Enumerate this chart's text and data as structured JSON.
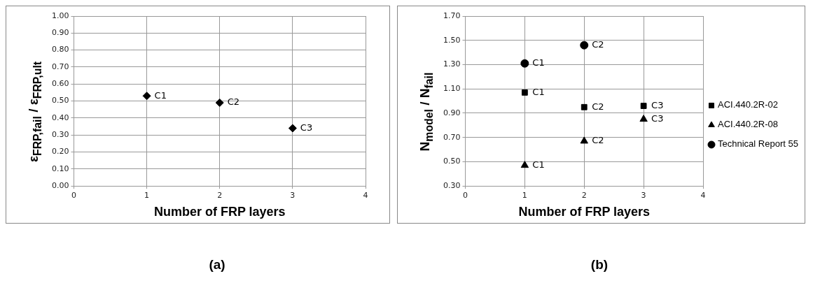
{
  "chart_data": [
    {
      "type": "scatter",
      "title": "(a)",
      "xlabel": "Number of FRP layers",
      "ylabel": "ε$_{FRP,fail}$ / ε$_{FRP,ult}$",
      "xlim": [
        0,
        4
      ],
      "xticks": [
        0,
        1,
        2,
        3,
        4
      ],
      "ylim": [
        0,
        1
      ],
      "yticks": [
        {
          "value": 0,
          "label": "0.00"
        },
        {
          "value": 0.1,
          "label": "0.10"
        },
        {
          "value": 0.2,
          "label": "0.20"
        },
        {
          "value": 0.3,
          "label": "0.30"
        },
        {
          "value": 0.4,
          "label": "0.40"
        },
        {
          "value": 0.5,
          "label": "0.50"
        },
        {
          "value": 0.6,
          "label": "0.60"
        },
        {
          "value": 0.7,
          "label": "0.70"
        },
        {
          "value": 0.8,
          "label": "0.80"
        },
        {
          "value": 0.9,
          "label": "0.90"
        },
        {
          "value": 1,
          "label": "1.00"
        }
      ],
      "grid": true,
      "legend": false,
      "marker": "diamond",
      "series": [
        {
          "color": "#000000",
          "x": [
            1,
            2,
            3
          ],
          "values": [
            0.53,
            0.49,
            0.34
          ]
        }
      ],
      "annotations": [
        {
          "text": "C1",
          "x": 1,
          "y": 0.53
        },
        {
          "text": "C2",
          "x": 2,
          "y": 0.49
        },
        {
          "text": "C3",
          "x": 3,
          "y": 0.34
        }
      ]
    },
    {
      "type": "scatter",
      "title": "(b)",
      "xlabel": "Number of FRP layers",
      "ylabel": "N$_{model}$ / N$_{fail}$",
      "xlim": [
        0,
        4
      ],
      "xticks": [
        0,
        1,
        2,
        3,
        4
      ],
      "ylim": [
        0.3,
        1.7
      ],
      "yticks": [
        {
          "value": 0.3,
          "label": "0.30"
        },
        {
          "value": 0.5,
          "label": "0.50"
        },
        {
          "value": 0.7,
          "label": "0.70"
        },
        {
          "value": 0.9,
          "label": "0.90"
        },
        {
          "value": 1.1,
          "label": "1.10"
        },
        {
          "value": 1.3,
          "label": "1.30"
        },
        {
          "value": 1.5,
          "label": "1.50"
        },
        {
          "value": 1.7,
          "label": "1.70"
        }
      ],
      "grid": true,
      "legend": "right",
      "series": [
        {
          "name": "ACI.440.2R-02",
          "color": "#000000",
          "marker": "square",
          "x": [
            1,
            2,
            3
          ],
          "values": [
            1.07,
            0.95,
            0.96
          ]
        },
        {
          "name": "ACI.440.2R-08",
          "color": "#000000",
          "marker": "triangle",
          "x": [
            1,
            2,
            3
          ],
          "values": [
            0.47,
            0.67,
            0.85
          ]
        },
        {
          "name": "Technical Report 55",
          "color": "#000000",
          "marker": "circle",
          "x": [
            1,
            2
          ],
          "values": [
            1.31,
            1.46
          ]
        }
      ],
      "annotations": [
        {
          "text": "C1",
          "x": 1,
          "y": 1.07
        },
        {
          "text": "C2",
          "x": 2,
          "y": 0.95
        },
        {
          "text": "C3",
          "x": 3,
          "y": 0.96
        },
        {
          "text": "C1",
          "x": 1,
          "y": 0.47
        },
        {
          "text": "C2",
          "x": 2,
          "y": 0.67
        },
        {
          "text": "C3",
          "x": 3,
          "y": 0.85
        },
        {
          "text": "C1",
          "x": 1,
          "y": 1.31
        },
        {
          "text": "C2",
          "x": 2,
          "y": 1.46
        }
      ]
    }
  ]
}
